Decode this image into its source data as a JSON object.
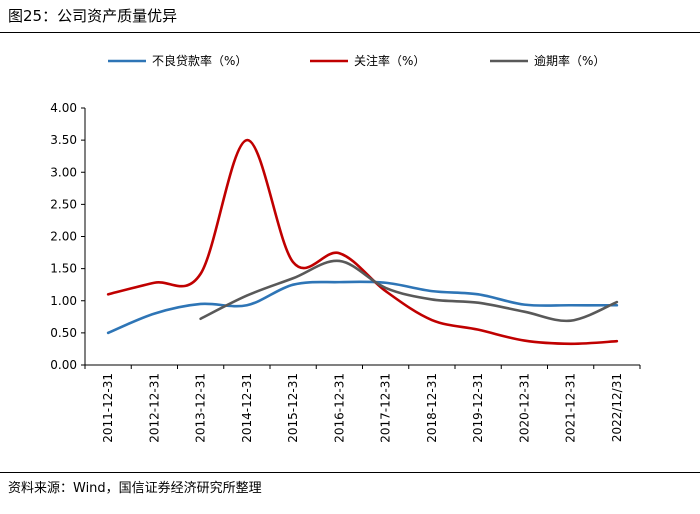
{
  "header": {
    "figure_title": "图25：公司资产质量优异"
  },
  "footer": {
    "source": "资料来源：Wind，国信证券经济研究所整理"
  },
  "chart_data": {
    "type": "line",
    "categories": [
      "2011-12-31",
      "2012-12-31",
      "2013-12-31",
      "2014-12-31",
      "2015-12-31",
      "2016-12-31",
      "2017-12-31",
      "2018-12-31",
      "2019-12-31",
      "2020-12-31",
      "2021-12-31",
      "2022/12/31"
    ],
    "ylim": [
      0,
      4
    ],
    "yticks": [
      "0.00",
      "0.50",
      "1.00",
      "1.50",
      "2.00",
      "2.50",
      "3.00",
      "3.50",
      "4.00"
    ],
    "legend_position": "top",
    "grid": false,
    "smooth": true,
    "series": [
      {
        "name": "不良贷款率（%）",
        "color": "#2E75B6",
        "values": [
          0.5,
          0.8,
          0.95,
          0.93,
          1.25,
          1.29,
          1.28,
          1.15,
          1.1,
          0.94,
          0.93,
          0.93
        ]
      },
      {
        "name": "关注率（%）",
        "color": "#C00000",
        "values": [
          1.1,
          1.28,
          1.42,
          3.5,
          1.6,
          1.74,
          1.15,
          0.7,
          0.55,
          0.38,
          0.33,
          0.37
        ]
      },
      {
        "name": "逾期率（%）",
        "color": "#595959",
        "values": [
          null,
          null,
          0.72,
          1.08,
          1.35,
          1.62,
          1.2,
          1.02,
          0.97,
          0.83,
          0.69,
          0.98
        ]
      }
    ]
  }
}
